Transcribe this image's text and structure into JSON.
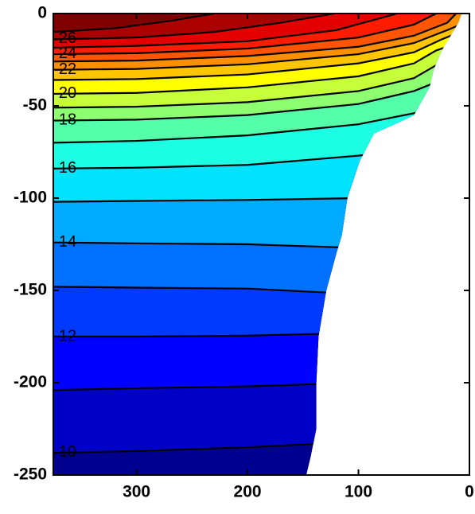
{
  "chart_data": {
    "type": "contour",
    "xlim": [
      375,
      0
    ],
    "ylim": [
      -250,
      0
    ],
    "xticks": [
      300,
      200,
      100,
      0
    ],
    "yticks": [
      0,
      -50,
      -100,
      -150,
      -200,
      -250
    ],
    "colormap": "jet",
    "seafloor": {
      "x": [
        7,
        10,
        15,
        25,
        32,
        36,
        50,
        60,
        86,
        99,
        110,
        115,
        120,
        129,
        136,
        138,
        138,
        143,
        147
      ],
      "y": [
        0,
        -5,
        -10,
        -20,
        -30,
        -40,
        -55,
        -58,
        -65,
        -80,
        -100,
        -120,
        -130,
        -150,
        -175,
        -200,
        -225,
        -240,
        -250
      ]
    },
    "contours": [
      {
        "level": 10,
        "label": true,
        "x": [
          375,
          300,
          200,
          100,
          0
        ],
        "y": [
          -238,
          -237,
          -235,
          -232,
          -230
        ]
      },
      {
        "level": 11,
        "label": false,
        "x": [
          375,
          300,
          200,
          100,
          0
        ],
        "y": [
          -204,
          -203,
          -202,
          -200,
          -199
        ]
      },
      {
        "level": 12,
        "label": true,
        "x": [
          375,
          300,
          200,
          100,
          0
        ],
        "y": [
          -175,
          -175,
          -174.5,
          -173,
          -172
        ]
      },
      {
        "level": 13,
        "label": false,
        "x": [
          375,
          300,
          200,
          100,
          0
        ],
        "y": [
          -148,
          -148.5,
          -149,
          -152,
          -155
        ]
      },
      {
        "level": 14,
        "label": true,
        "x": [
          375,
          300,
          200,
          100,
          0
        ],
        "y": [
          -124,
          -124.5,
          -125,
          -127,
          -129
        ]
      },
      {
        "level": 15,
        "label": false,
        "x": [
          375,
          300,
          200,
          100,
          0
        ],
        "y": [
          -102,
          -101.5,
          -101,
          -100,
          -99
        ]
      },
      {
        "level": 16,
        "label": true,
        "x": [
          375,
          300,
          200,
          100,
          0
        ],
        "y": [
          -84,
          -83.5,
          -82,
          -77,
          -70
        ]
      },
      {
        "level": 17,
        "label": false,
        "x": [
          375,
          300,
          200,
          100,
          50,
          0
        ],
        "y": [
          -70,
          -69,
          -66,
          -60,
          -54,
          -45
        ]
      },
      {
        "level": 18,
        "label": true,
        "x": [
          375,
          300,
          200,
          100,
          50,
          0
        ],
        "y": [
          -58,
          -57.5,
          -55,
          -49,
          -42,
          -30
        ]
      },
      {
        "level": 19,
        "label": false,
        "x": [
          375,
          300,
          200,
          100,
          50,
          30,
          0
        ],
        "y": [
          -51,
          -50.5,
          -48,
          -42,
          -35,
          -28,
          -22
        ]
      },
      {
        "level": 20,
        "label": true,
        "x": [
          375,
          300,
          200,
          100,
          50,
          30,
          0
        ],
        "y": [
          -43.5,
          -43,
          -40,
          -34,
          -27,
          -20,
          -14
        ]
      },
      {
        "level": 21,
        "label": false,
        "x": [
          375,
          300,
          200,
          100,
          50,
          25,
          0
        ],
        "y": [
          -36,
          -35.5,
          -33,
          -27,
          -21,
          -14,
          -8
        ]
      },
      {
        "level": 22,
        "label": true,
        "x": [
          375,
          300,
          200,
          100,
          50,
          20,
          0
        ],
        "y": [
          -30.5,
          -30,
          -27.5,
          -22,
          -16,
          -9,
          -4
        ]
      },
      {
        "level": 23,
        "label": false,
        "x": [
          375,
          300,
          200,
          100,
          50,
          20,
          12
        ],
        "y": [
          -26,
          -25.5,
          -23,
          -18,
          -12,
          -5,
          0
        ]
      },
      {
        "level": 24,
        "label": true,
        "x": [
          375,
          300,
          200,
          100,
          50,
          30
        ],
        "y": [
          -22,
          -21.5,
          -19,
          -13,
          -6,
          0
        ]
      },
      {
        "level": 25,
        "label": false,
        "x": [
          375,
          300,
          200,
          120,
          65
        ],
        "y": [
          -18.5,
          -17.5,
          -15,
          -9,
          0
        ]
      },
      {
        "level": 26,
        "label": true,
        "x": [
          375,
          300,
          230,
          170,
          122
        ],
        "y": [
          -14,
          -13,
          -10,
          -5,
          0
        ]
      },
      {
        "level": 27,
        "label": false,
        "x": [
          375,
          320,
          270,
          230
        ],
        "y": [
          -10,
          -8,
          -4,
          0
        ]
      }
    ]
  }
}
